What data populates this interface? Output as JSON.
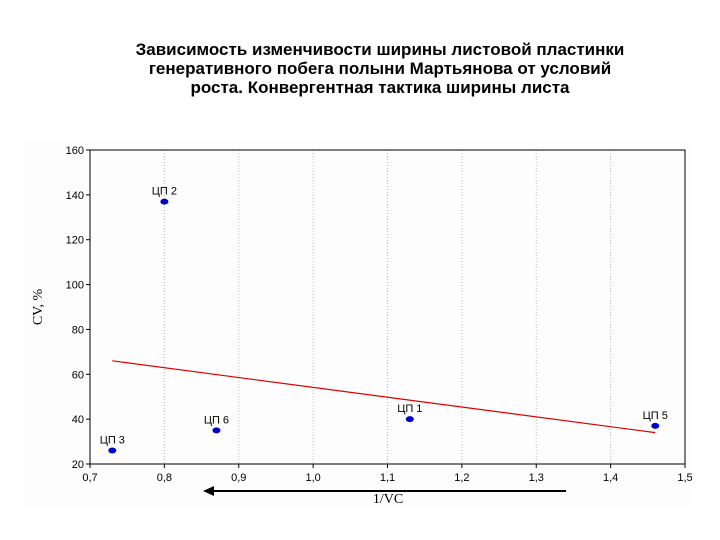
{
  "title_lines": [
    "Зависимость изменчивости ширины листовой пластинки",
    "генеративного побега полыни Мартьянова от условий",
    "роста. Конвергентная тактика ширины листа"
  ],
  "chart_data": {
    "type": "scatter",
    "xlabel": "1/VC",
    "ylabel": "CV, %",
    "xlim": [
      0.7,
      1.5
    ],
    "ylim": [
      20,
      160
    ],
    "x_ticks": [
      "0,7",
      "0,8",
      "0,9",
      "1,0",
      "1,1",
      "1,2",
      "1,3",
      "1,4",
      "1,5"
    ],
    "y_ticks": [
      "20",
      "40",
      "60",
      "80",
      "100",
      "120",
      "140",
      "160"
    ],
    "grid": "vertical dotted",
    "points": [
      {
        "label": "ЦП 1",
        "x": 1.13,
        "y": 40
      },
      {
        "label": "ЦП 2",
        "x": 0.8,
        "y": 137
      },
      {
        "label": "ЦП 3",
        "x": 0.73,
        "y": 26
      },
      {
        "label": "ЦП 5",
        "x": 1.46,
        "y": 37
      },
      {
        "label": "ЦП 6",
        "x": 0.87,
        "y": 35
      }
    ],
    "trendline": {
      "x": [
        0.73,
        1.46
      ],
      "y": [
        66,
        34
      ]
    },
    "point_color": "#0000cc",
    "trend_color": "#dd0000",
    "arrow_direction": "left"
  }
}
